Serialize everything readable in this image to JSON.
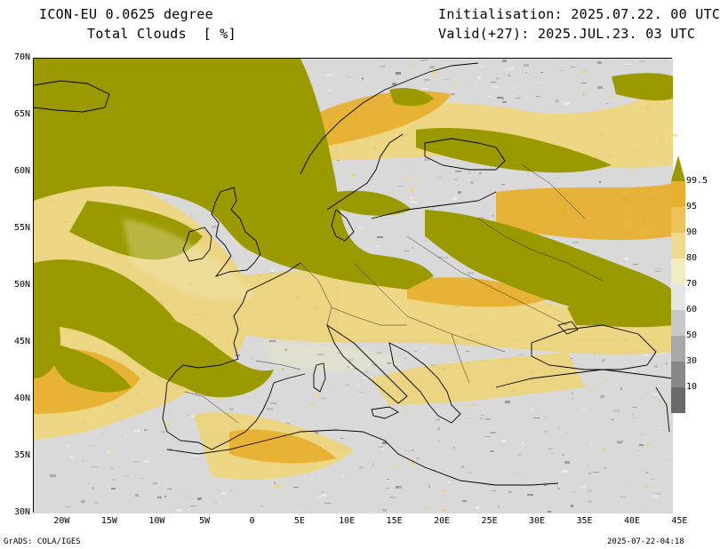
{
  "header": {
    "model": "ICON-EU 0.0625 degree",
    "variable": "Total Clouds  [ %]",
    "init": "Initialisation: 2025.07.22. 00 UTC",
    "valid": "Valid(+27): 2025.JUL.23. 03 UTC"
  },
  "axes": {
    "lat_labels": [
      "70N",
      "65N",
      "60N",
      "55N",
      "50N",
      "45N",
      "40N",
      "35N",
      "30N"
    ],
    "lon_labels": [
      "20W",
      "15W",
      "10W",
      "5W",
      "0",
      "5E",
      "10E",
      "15E",
      "20E",
      "25E",
      "30E",
      "35E",
      "40E",
      "45E"
    ]
  },
  "colorbar": {
    "labels": [
      "99.5",
      "95",
      "90",
      "80",
      "70",
      "60",
      "50",
      "30",
      "10"
    ],
    "colors": [
      "#9a9a00",
      "#e8b030",
      "#ecc25a",
      "#f0d890",
      "#f2ecc0",
      "#e6e6e6",
      "#c8c8c8",
      "#a8a8a8",
      "#888888",
      "#6a6a6a"
    ]
  },
  "palette": {
    "clear": "#d9d9d9",
    "dense_cloud": "#9a9a00",
    "high_cloud": "#e8b030",
    "mid_cloud": "#eed57a",
    "light_gray": "#c4c4c4",
    "dark_gray": "#8a8a8a"
  },
  "footer": {
    "left": "GrADS: COLA/IGES",
    "right": "2025-07-22-04:18"
  }
}
